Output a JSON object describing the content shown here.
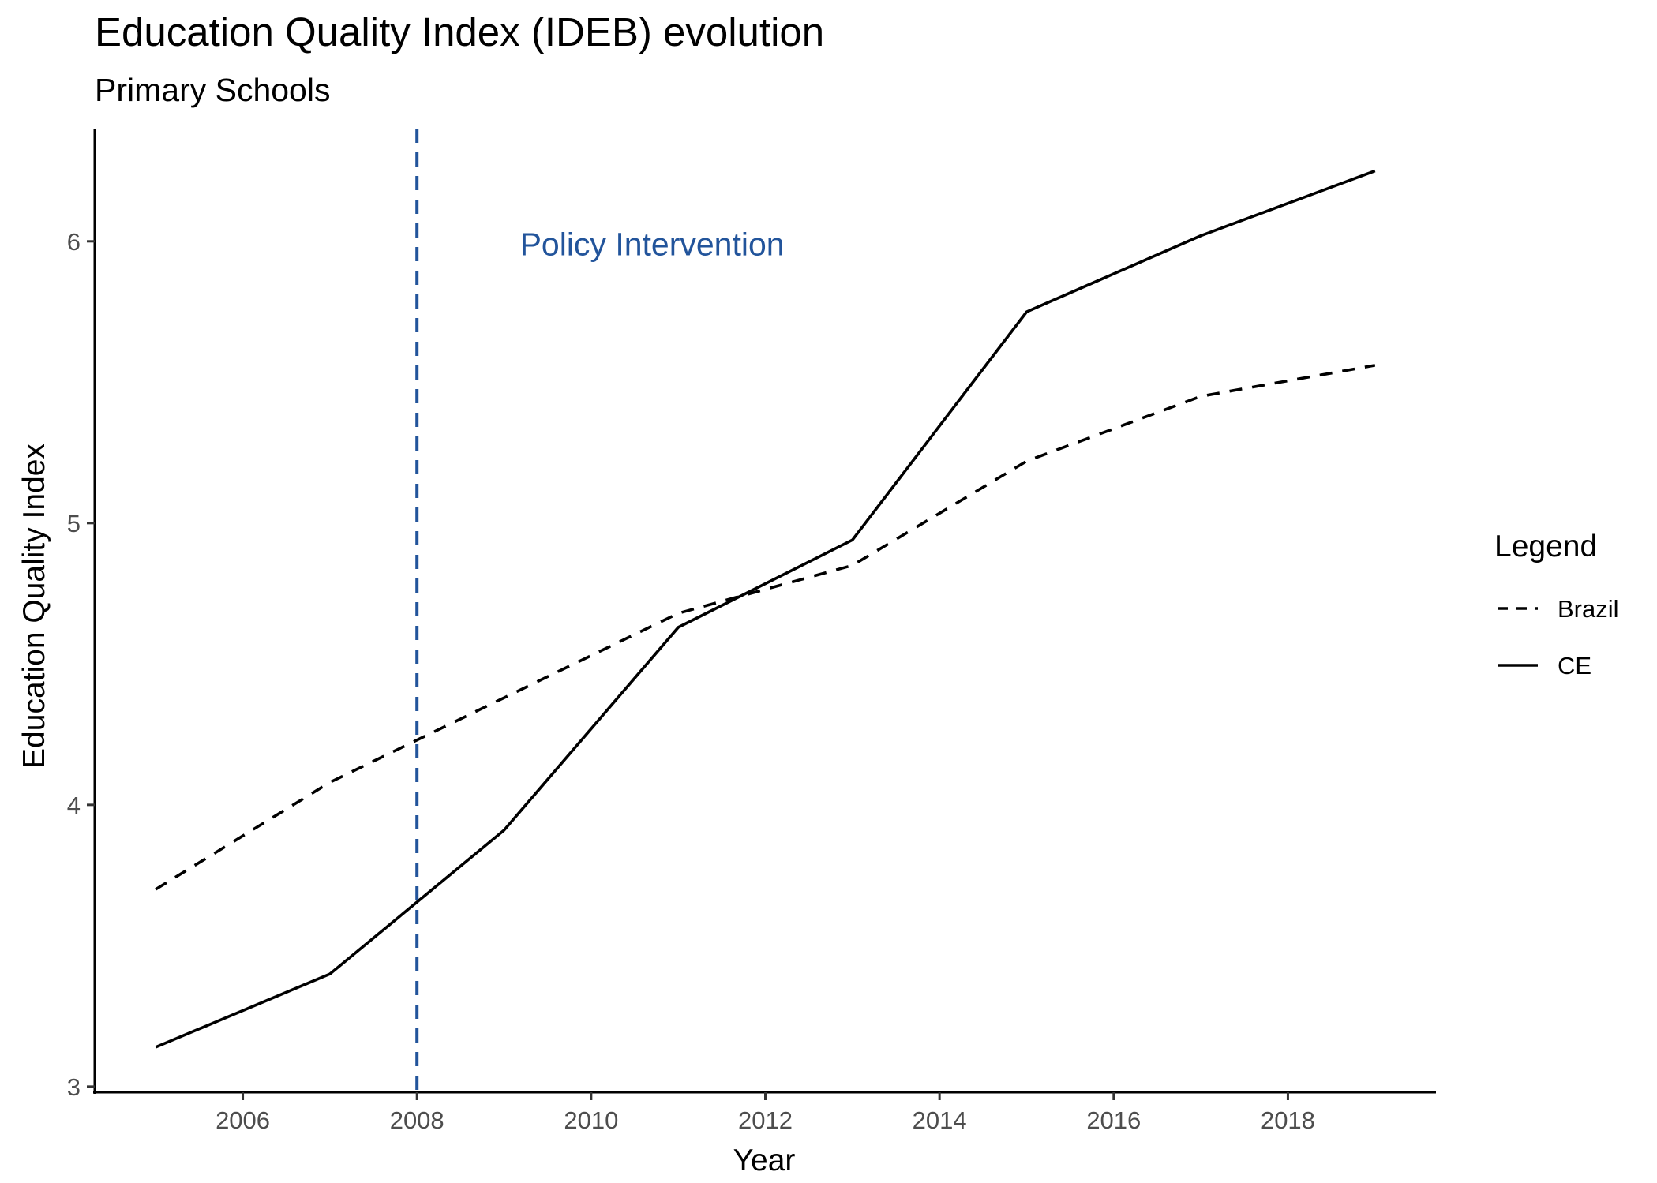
{
  "chart_data": {
    "type": "line",
    "title": "Education Quality Index (IDEB) evolution",
    "subtitle": "Primary Schools",
    "xlabel": "Year",
    "ylabel": "Education Quality Index",
    "xlim": [
      2004.3,
      2019.7
    ],
    "ylim": [
      2.98,
      6.4
    ],
    "x_ticks": [
      2006,
      2008,
      2010,
      2012,
      2014,
      2016,
      2018
    ],
    "y_ticks": [
      3,
      4,
      5,
      6
    ],
    "grid": false,
    "legend": {
      "title": "Legend",
      "position": "right",
      "entries": [
        {
          "label": "Brazil",
          "linetype": "dashed"
        },
        {
          "label": "CE",
          "linetype": "solid"
        }
      ]
    },
    "series": [
      {
        "name": "Brazil",
        "linetype": "dashed",
        "color": "#000000",
        "x": [
          2005,
          2007,
          2009,
          2011,
          2013,
          2015,
          2017,
          2019
        ],
        "y": [
          3.7,
          4.08,
          4.38,
          4.68,
          4.85,
          5.22,
          5.45,
          5.56
        ]
      },
      {
        "name": "CE",
        "linetype": "solid",
        "color": "#000000",
        "x": [
          2005,
          2007,
          2009,
          2011,
          2013,
          2015,
          2017,
          2019
        ],
        "y": [
          3.14,
          3.4,
          3.91,
          4.63,
          4.94,
          5.75,
          6.02,
          6.25
        ]
      }
    ],
    "vline": {
      "x": 2008,
      "color": "#22549b",
      "linetype": "dashed"
    },
    "annotations": [
      {
        "text": "Policy Intervention",
        "x": 2010.7,
        "y": 5.99,
        "color": "#22549b"
      }
    ]
  }
}
